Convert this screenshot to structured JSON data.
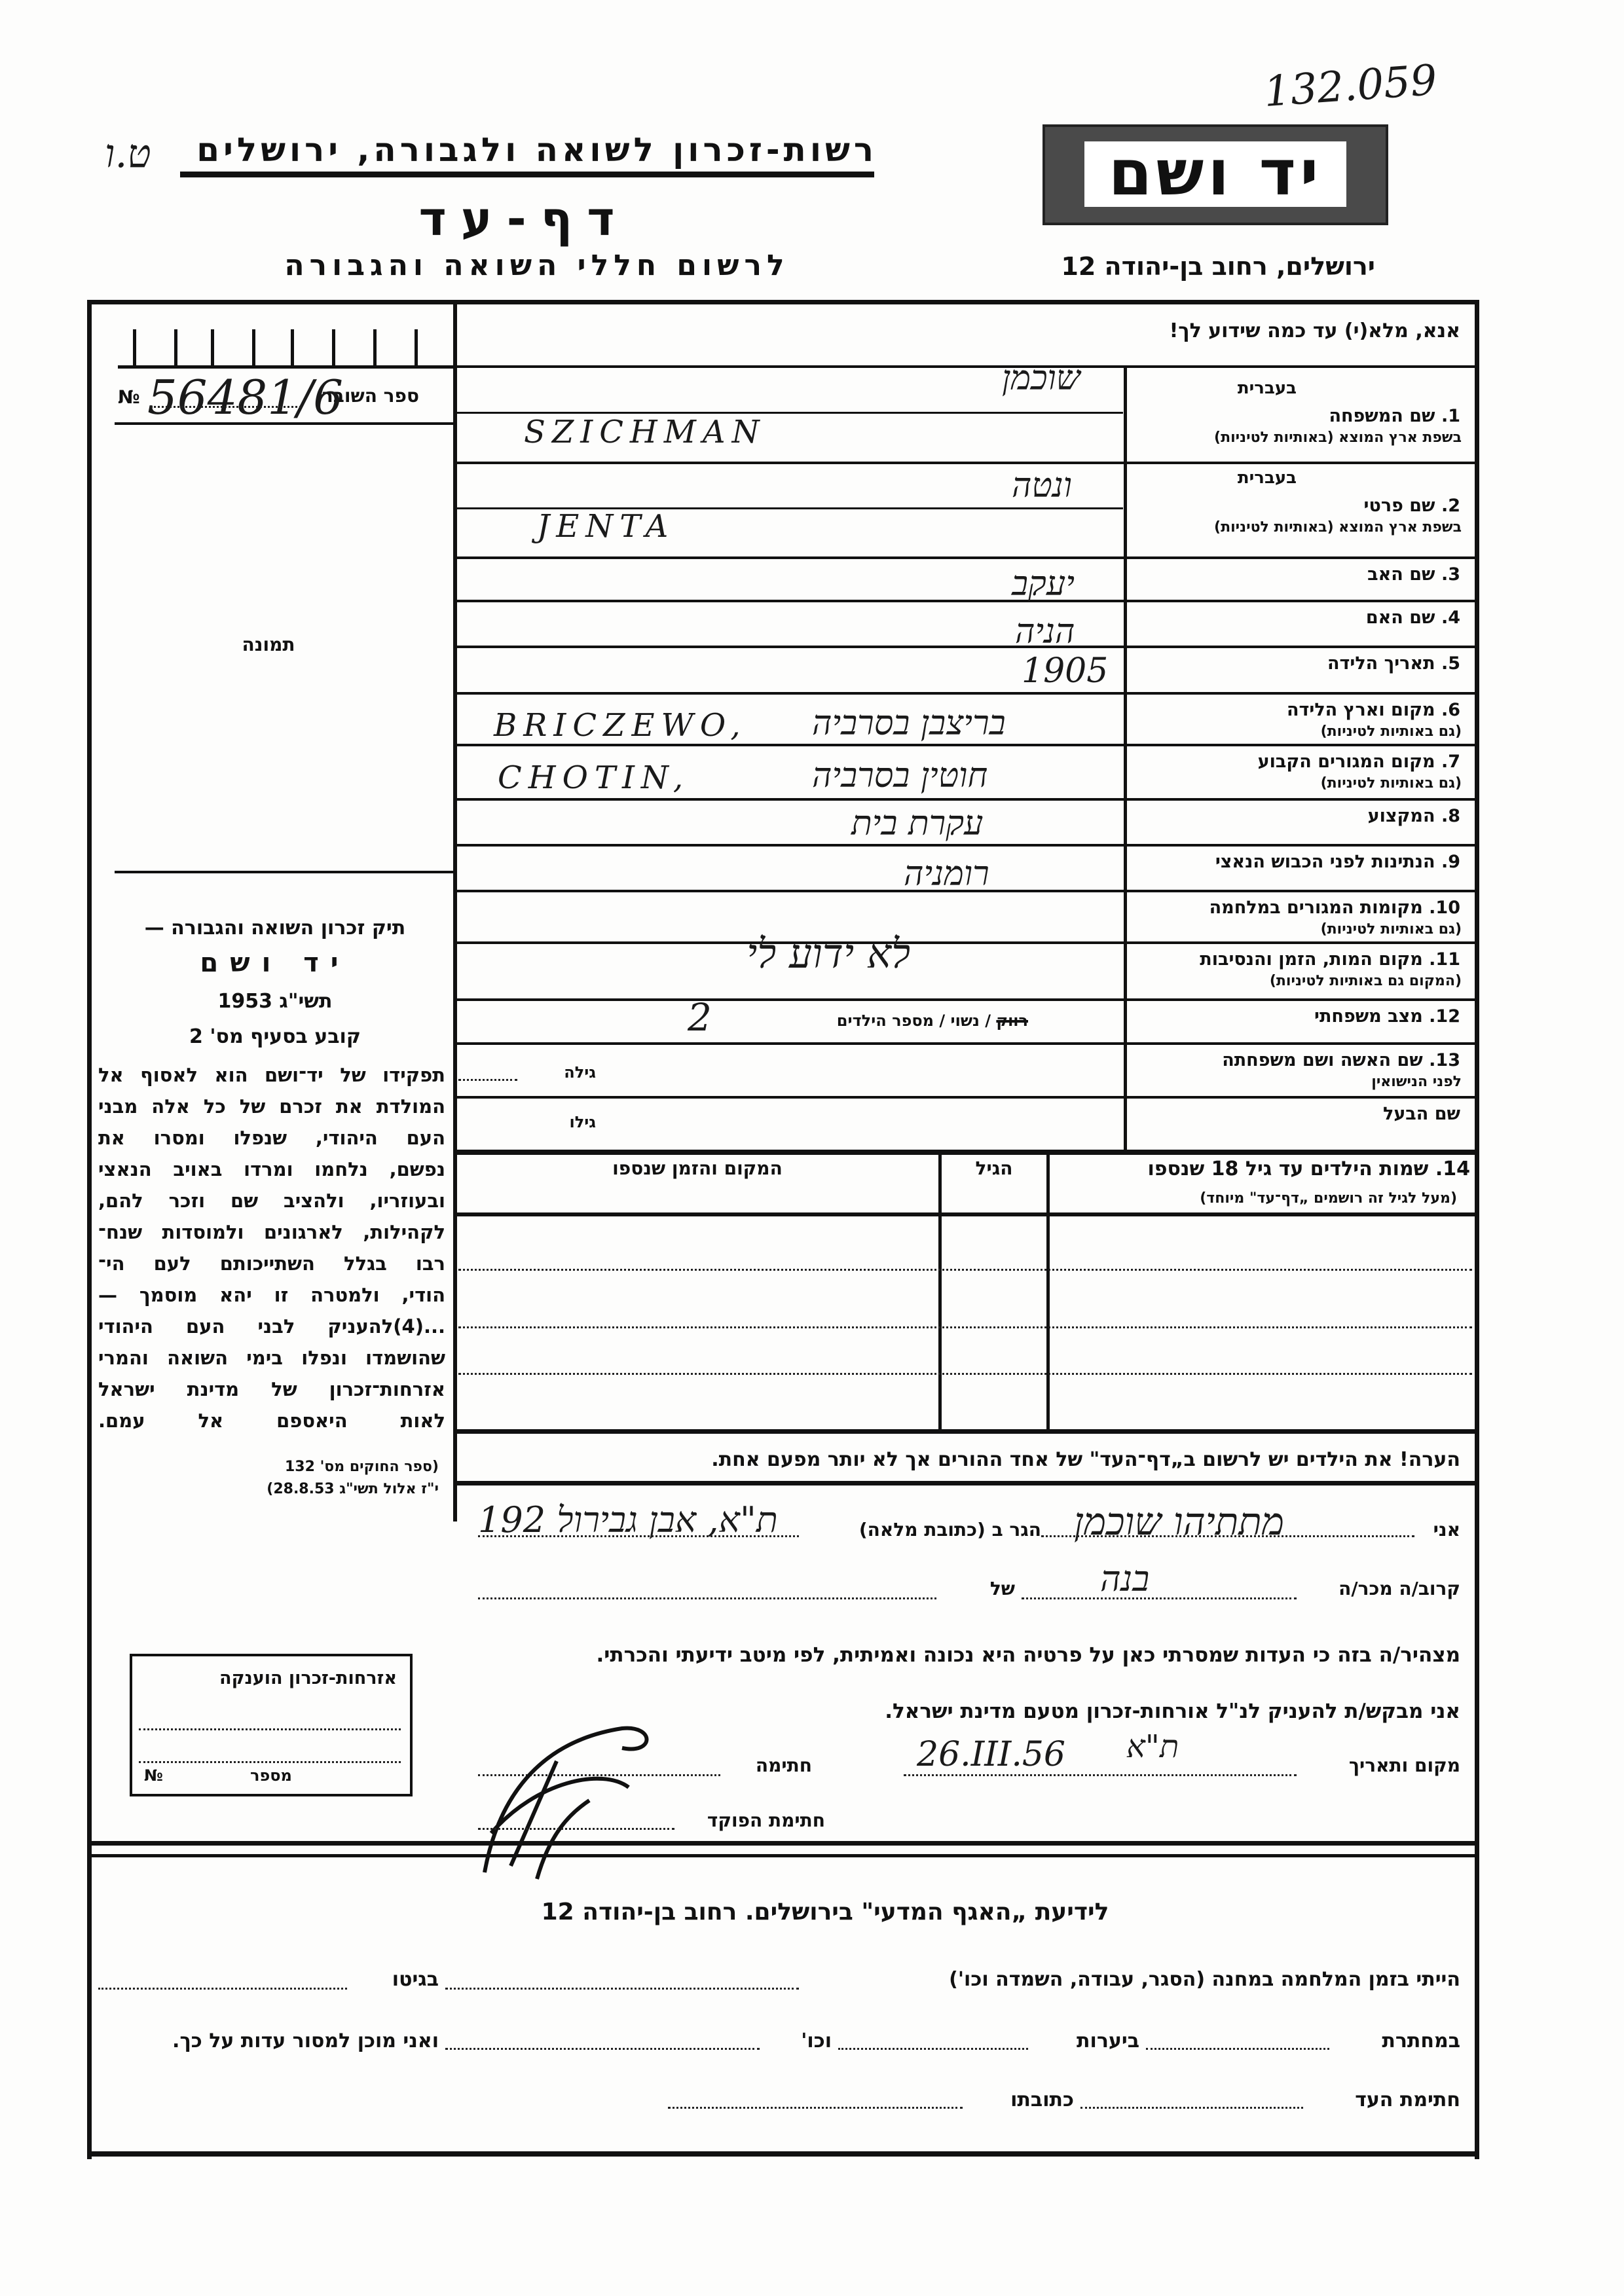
{
  "header": {
    "archive_number": "132.059",
    "file_mark": "ט.ו",
    "org_name": "רשות-זכרון לשואה ולגבורה, ירושלים",
    "title": "דף-עד",
    "subtitle": "לרשום חללי השואה והגבורה",
    "logo_text": "יד ושם",
    "address": "ירושלים, רחוב בן-יהודה 12"
  },
  "left": {
    "receipt_label": "ספר השובר",
    "receipt_number": "56481/6",
    "no_sign": "№",
    "photo_label": "תמונה",
    "law": {
      "title": "תיק זכרון השואה והגבורה —",
      "name": "יד ושם",
      "year": "תשי\"ג 1953",
      "clause": "קובע בסעיף מס' 2",
      "lines": [
        "תפקידו של יד־ושם הוא לאסוף אל",
        "המולדת את זכרם של כל אלה מבני",
        "העם היהודי, שנפלו ומסרו את",
        "נפשם, נלחמו ומרדו באויב הנאצי",
        "ובעוזריו, ולהציב שם וזכר להם,",
        "לקהילות, לארגונים ולמוסדות שנח־",
        "רבו בגלל השתייכותם לעם הי־",
        "הודי, ולמטרה זו יהא מוסמך —",
        "...(4)להעניק לבני העם היהודי",
        "שהושמדו ונפלו בימי השואה והמרי",
        "אזרחות־זכרון של מדינת ישראל",
        "לאות היאספם אל עמם."
      ],
      "ref1": "(ספר החוקים מס' 132",
      "ref2": "י\"ז אלול תשי\"ג 28.8.53)"
    }
  },
  "form": {
    "instruction": "אנא, מלא(י) עד כמה שידוע לך!",
    "hebrew_label": "בעברית",
    "fields": [
      {
        "num": "1.",
        "label": "שם המשפחה",
        "sublabel": "בשפת ארץ המוצא (באותיות לטיניות)",
        "value_he": "שוכמן",
        "value_lat": "SZICHMAN"
      },
      {
        "num": "2.",
        "label": "שם פרטי",
        "sublabel": "בשפת ארץ המוצא (באותיות לטיניות)",
        "value_he": "ונטה",
        "value_lat": "JENTA"
      },
      {
        "num": "3.",
        "label": "שם האב",
        "value_he": "יעקב"
      },
      {
        "num": "4.",
        "label": "שם האם",
        "value_he": "הניה"
      },
      {
        "num": "5.",
        "label": "תאריך הלידה",
        "value_he": "1905"
      },
      {
        "num": "6.",
        "label": "מקום וארץ הלידה",
        "sublabel": "(גם באותיות לטיניות)",
        "value_he": "בריצבן בסרביה",
        "value_lat": "BRICZEWO,"
      },
      {
        "num": "7.",
        "label": "מקום המגורים הקבוע",
        "sublabel": "(גם באותיות לטיניות)",
        "value_he": "חוטין בסרביה",
        "value_lat": "CHOTIN,"
      },
      {
        "num": "8.",
        "label": "המקצוע",
        "value_he": "עקרת בית"
      },
      {
        "num": "9.",
        "label": "הנתינות לפני הכבוש הנאצי",
        "value_he": "רומניה"
      },
      {
        "num": "10.",
        "label": "מקומות המגורים במלחמה",
        "sublabel": "(גם באותיות לטיניות)",
        "value_he": ""
      },
      {
        "num": "11.",
        "label": "מקום המות, הזמן והנסיבות",
        "sublabel": "(המקום גם באותיות לטיניות)",
        "value_he": "לא ידוע לי"
      },
      {
        "num": "12.",
        "label": "מצב משפחתי"
      },
      {
        "num": "13.",
        "label": "שם האשה ושם משפחתה",
        "sublabel": "לפני הנישואין"
      },
      {
        "num": "",
        "label": "שם הבעל"
      }
    ],
    "marital": {
      "single": "רווק",
      "married": "נשוי",
      "children_label": "מספר הילדים",
      "children_count": "2",
      "single_struck": true
    },
    "wife_age_label": "גילה",
    "husband_age_label": "גילו"
  },
  "children": {
    "header_name": "14. שמות הילדים עד גיל 18 שנספו",
    "header_name_note": "(מעל לגיל זה רושמים „דף־עד\" מיוחד)",
    "header_age": "הגיל",
    "header_place": "המקום והזמן שנספו",
    "rows": [
      {
        "name": "",
        "age": "",
        "place": ""
      },
      {
        "name": "",
        "age": "",
        "place": ""
      },
      {
        "name": "",
        "age": "",
        "place": ""
      }
    ],
    "note": "הערה!  את הילדים יש לרשום ב„דף־העד\" של אחד ההורים אך לא יותר מפעם אחת."
  },
  "declaration": {
    "i_label": "אני",
    "declarant_name": "מתתיהו שוכמן",
    "address_label": "הגר ב (כתובת מלאה)",
    "address": "ת\"א, אבן גבירול 192",
    "relation_label": "קרוב/ה מכר/ה",
    "relation": "בנה",
    "of_label": "של",
    "statement": "מצהיר/ה בזה כי העדות שמסרתי כאן על פרטיה היא נכונה ואמיתית, לפי מיטב ידיעתי והכרתי.",
    "request": "אני מבקש/ת להעניק לנ\"ל אורחות-זכרון מטעם מדינת ישראל.",
    "place_date_label": "מקום ותאריך",
    "date": "26.III.56",
    "place": "ת\"א",
    "signature_label": "חתימה",
    "officer_signature_label": "חתימת הפוקד",
    "box_title": "אזרחות-זכרון הוענקה",
    "box_number_label": "מספר",
    "box_no_sign": "№"
  },
  "bottom": {
    "title": "לידיעת „האגף המדעי\" בירושלים. רחוב בן-יהודה 12",
    "line1_a": "הייתי בזמן המלחמה במחנה (הסגר, עבודה, השמדה וכו')",
    "line1_b": "בגיטו",
    "line2_a": "במחתרת",
    "line2_b": "ביערות",
    "line2_c": "וכו'",
    "line2_d": "ואני מוכן למסור עדות על כך.",
    "line3_a": "חתימת העד",
    "line3_b": "כתובתו"
  }
}
